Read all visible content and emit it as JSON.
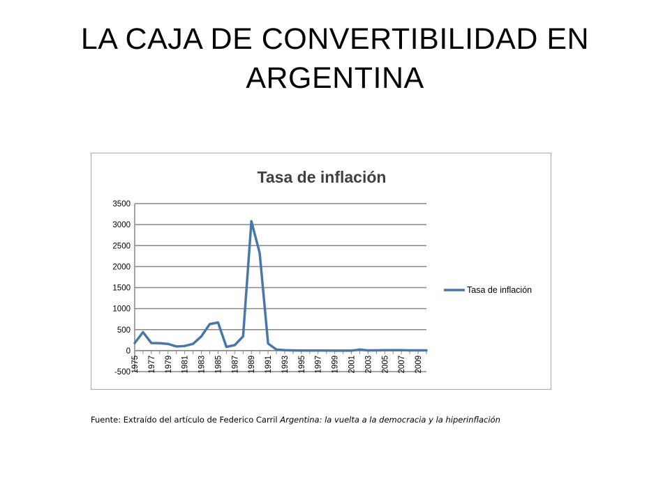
{
  "slide": {
    "title": "LA CAJA DE CONVERTIBILIDAD EN ARGENTINA"
  },
  "source": {
    "prefix": "Fuente: Extraído del artículo de Federico Carril ",
    "italic": "Argentina: la vuelta a la democracia y la hiperinflación"
  },
  "colors": {
    "series": "#4a77aa",
    "grid": "#868686",
    "axis": "#868686"
  },
  "chart_data": {
    "type": "line",
    "title": "Tasa de inflación",
    "xlabel": "",
    "ylabel": "",
    "ylim": [
      -500,
      3500
    ],
    "yticks": [
      -500,
      0,
      500,
      1000,
      1500,
      2000,
      2500,
      3000,
      3500
    ],
    "grid": true,
    "legend_position": "right",
    "x": [
      1975,
      1976,
      1977,
      1978,
      1979,
      1980,
      1981,
      1982,
      1983,
      1984,
      1985,
      1986,
      1987,
      1988,
      1989,
      1990,
      1991,
      1992,
      1993,
      1994,
      1995,
      1996,
      1997,
      1998,
      1999,
      2000,
      2001,
      2002,
      2003,
      2004,
      2005,
      2006,
      2007,
      2008,
      2009,
      2010
    ],
    "xtick_labels": [
      "1975",
      "1977",
      "1979",
      "1981",
      "1983",
      "1985",
      "1987",
      "1989",
      "1991",
      "1993",
      "1995",
      "1997",
      "1999",
      "2001",
      "2003",
      "2005",
      "2007",
      "2009"
    ],
    "series": [
      {
        "name": "Tasa de inflación",
        "values": [
          180,
          440,
          180,
          175,
          160,
          100,
          110,
          160,
          340,
          630,
          670,
          90,
          130,
          340,
          3080,
          2320,
          170,
          25,
          10,
          5,
          3,
          2,
          1,
          1,
          -1,
          -1,
          -1,
          25,
          4,
          6,
          10,
          10,
          9,
          7,
          6,
          7
        ]
      }
    ]
  }
}
